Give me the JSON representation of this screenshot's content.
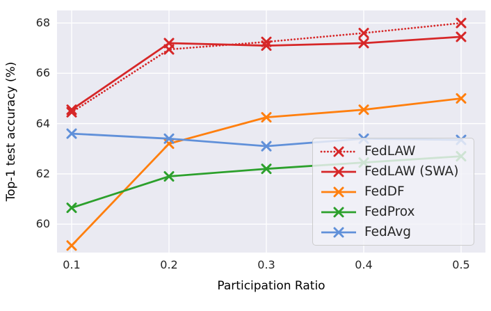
{
  "chart_data": {
    "type": "line",
    "title": "",
    "xlabel": "Participation Ratio",
    "ylabel": "Top-1 test accuracy (%)",
    "x": [
      0.1,
      0.2,
      0.3,
      0.4,
      0.5
    ],
    "xtick_labels": [
      "0.1",
      "0.2",
      "0.3",
      "0.4",
      "0.5"
    ],
    "yticks": [
      60,
      62,
      64,
      66,
      68
    ],
    "ytick_labels": [
      "60",
      "62",
      "64",
      "66",
      "68"
    ],
    "xlim": [
      0.085,
      0.525
    ],
    "ylim": [
      58.87,
      68.5
    ],
    "grid": true,
    "plot_background": "#eaeaf2",
    "grid_color": "#ffffff",
    "legend_position": "inside lower right",
    "marker": "x",
    "series": [
      {
        "name": "FedLAW",
        "color": "#d62728",
        "line_style": "dotted",
        "marker": "x",
        "values": [
          64.45,
          66.95,
          67.25,
          67.6,
          68.0
        ]
      },
      {
        "name": "FedLAW (SWA)",
        "color": "#d62728",
        "line_style": "solid",
        "marker": "x",
        "values": [
          64.55,
          67.2,
          67.1,
          67.2,
          67.45
        ]
      },
      {
        "name": "FedDF",
        "color": "#ff7f0e",
        "line_style": "solid",
        "marker": "x",
        "values": [
          59.15,
          63.2,
          64.25,
          64.55,
          65.0
        ]
      },
      {
        "name": "FedProx",
        "color": "#2ca02c",
        "line_style": "solid",
        "marker": "x",
        "values": [
          60.65,
          61.9,
          62.2,
          62.45,
          62.7
        ]
      },
      {
        "name": "FedAvg",
        "color": "#6090d9",
        "line_style": "solid",
        "marker": "x",
        "values": [
          63.6,
          63.4,
          63.1,
          63.4,
          63.35
        ]
      }
    ]
  }
}
